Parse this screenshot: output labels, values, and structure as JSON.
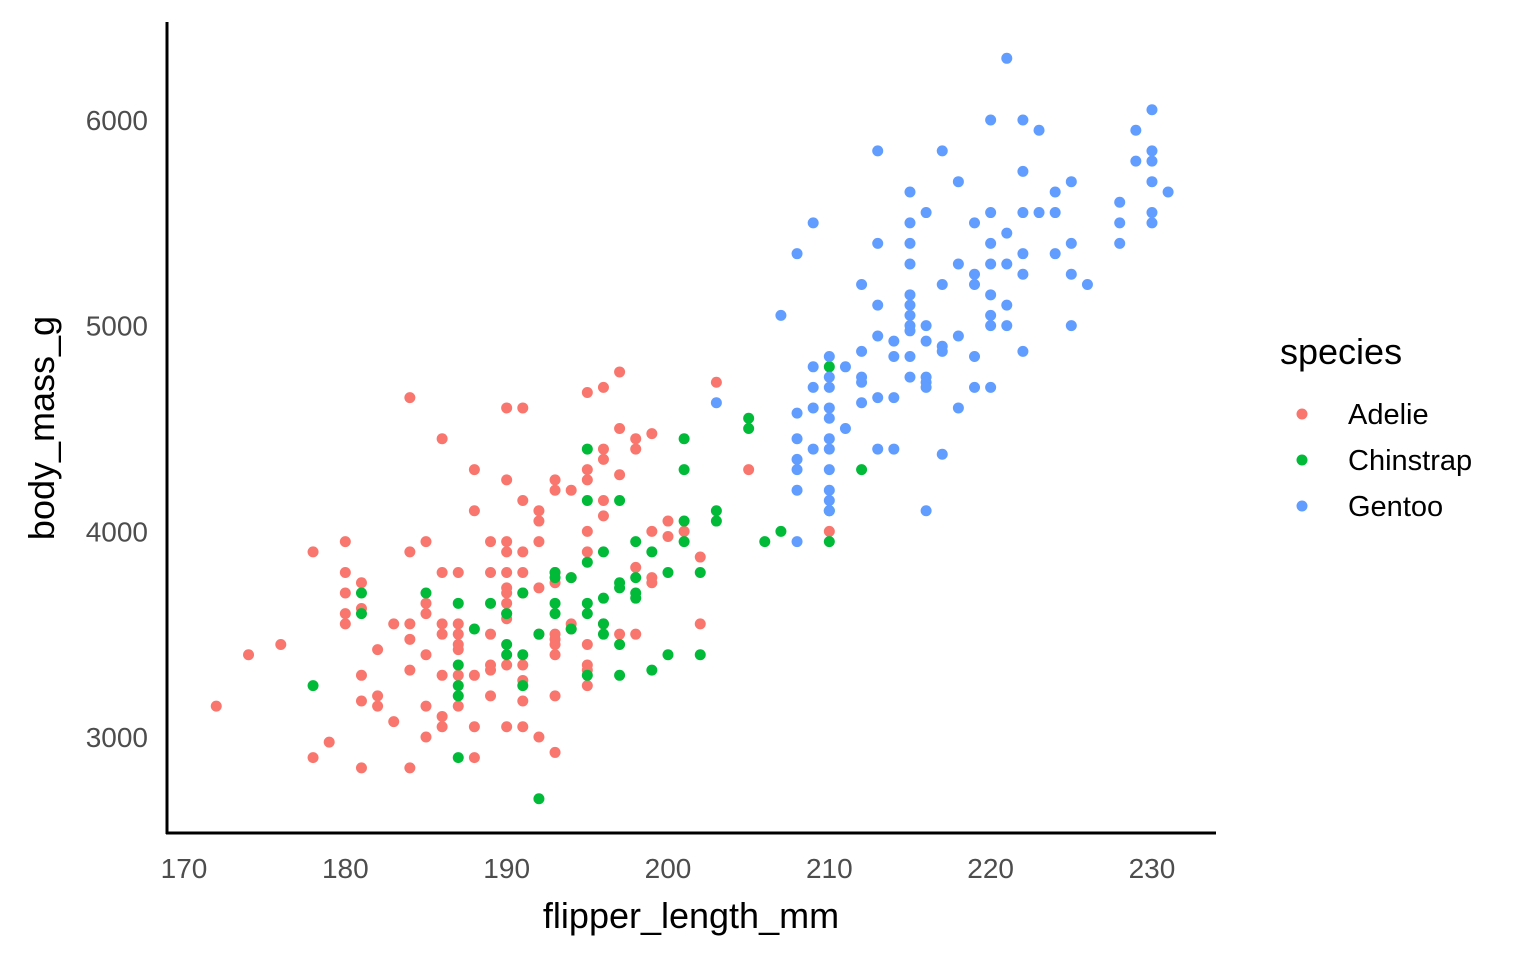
{
  "chart_data": {
    "type": "scatter",
    "xlabel": "flipper_length_mm",
    "ylabel": "body_mass_g",
    "xlim": [
      170,
      234
    ],
    "ylim": [
      2550,
      6450
    ],
    "xticks": [
      170,
      180,
      190,
      200,
      210,
      220,
      230
    ],
    "yticks": [
      3000,
      4000,
      5000,
      6000
    ],
    "grid": false,
    "legend": {
      "title": "species",
      "placement": "right"
    },
    "series": [
      {
        "name": "Adelie",
        "color": "#F8766D",
        "points": [
          [
            172,
            3150
          ],
          [
            174,
            3400
          ],
          [
            176,
            3450
          ],
          [
            178,
            3900
          ],
          [
            178,
            2900
          ],
          [
            179,
            2975
          ],
          [
            180,
            3950
          ],
          [
            180,
            3800
          ],
          [
            180,
            3700
          ],
          [
            180,
            3600
          ],
          [
            180,
            3550
          ],
          [
            181,
            3750
          ],
          [
            181,
            3625
          ],
          [
            181,
            3300
          ],
          [
            181,
            3175
          ],
          [
            181,
            2850
          ],
          [
            182,
            3425
          ],
          [
            182,
            3200
          ],
          [
            182,
            3150
          ],
          [
            183,
            3550
          ],
          [
            183,
            3075
          ],
          [
            184,
            4650
          ],
          [
            184,
            3900
          ],
          [
            184,
            3550
          ],
          [
            184,
            3475
          ],
          [
            184,
            3325
          ],
          [
            184,
            2850
          ],
          [
            185,
            3950
          ],
          [
            185,
            3650
          ],
          [
            185,
            3600
          ],
          [
            185,
            3400
          ],
          [
            185,
            3150
          ],
          [
            185,
            3000
          ],
          [
            186,
            4450
          ],
          [
            186,
            3800
          ],
          [
            186,
            3550
          ],
          [
            186,
            3500
          ],
          [
            186,
            3300
          ],
          [
            186,
            3100
          ],
          [
            186,
            3050
          ],
          [
            187,
            3800
          ],
          [
            187,
            3550
          ],
          [
            187,
            3500
          ],
          [
            187,
            3450
          ],
          [
            187,
            3425
          ],
          [
            187,
            3300
          ],
          [
            187,
            3150
          ],
          [
            188,
            4300
          ],
          [
            188,
            4100
          ],
          [
            188,
            3300
          ],
          [
            188,
            3050
          ],
          [
            188,
            2900
          ],
          [
            189,
            3950
          ],
          [
            189,
            3800
          ],
          [
            189,
            3500
          ],
          [
            189,
            3350
          ],
          [
            189,
            3325
          ],
          [
            189,
            3200
          ],
          [
            190,
            4600
          ],
          [
            190,
            4250
          ],
          [
            190,
            3950
          ],
          [
            190,
            3900
          ],
          [
            190,
            3800
          ],
          [
            190,
            3725
          ],
          [
            190,
            3700
          ],
          [
            190,
            3650
          ],
          [
            190,
            3600
          ],
          [
            190,
            3575
          ],
          [
            190,
            3350
          ],
          [
            190,
            3050
          ],
          [
            191,
            4600
          ],
          [
            191,
            4150
          ],
          [
            191,
            3900
          ],
          [
            191,
            3800
          ],
          [
            191,
            3700
          ],
          [
            191,
            3350
          ],
          [
            191,
            3275
          ],
          [
            191,
            3175
          ],
          [
            191,
            3050
          ],
          [
            192,
            4100
          ],
          [
            192,
            4050
          ],
          [
            192,
            3950
          ],
          [
            192,
            3725
          ],
          [
            192,
            3500
          ],
          [
            192,
            3000
          ],
          [
            193,
            4250
          ],
          [
            193,
            4200
          ],
          [
            193,
            3800
          ],
          [
            193,
            3750
          ],
          [
            193,
            3500
          ],
          [
            193,
            3475
          ],
          [
            193,
            3450
          ],
          [
            193,
            3400
          ],
          [
            193,
            3200
          ],
          [
            193,
            2925
          ],
          [
            194,
            4200
          ],
          [
            194,
            3775
          ],
          [
            194,
            3550
          ],
          [
            194,
            3525
          ],
          [
            195,
            4675
          ],
          [
            195,
            4300
          ],
          [
            195,
            4250
          ],
          [
            195,
            4000
          ],
          [
            195,
            3900
          ],
          [
            195,
            3450
          ],
          [
            195,
            3350
          ],
          [
            195,
            3325
          ],
          [
            195,
            3250
          ],
          [
            196,
            4700
          ],
          [
            196,
            4400
          ],
          [
            196,
            4350
          ],
          [
            196,
            4150
          ],
          [
            196,
            4075
          ],
          [
            196,
            3550
          ],
          [
            197,
            4775
          ],
          [
            197,
            4500
          ],
          [
            197,
            4275
          ],
          [
            197,
            3500
          ],
          [
            198,
            4450
          ],
          [
            198,
            4400
          ],
          [
            198,
            3825
          ],
          [
            198,
            3500
          ],
          [
            199,
            4475
          ],
          [
            199,
            4000
          ],
          [
            199,
            3775
          ],
          [
            199,
            3750
          ],
          [
            200,
            4050
          ],
          [
            200,
            3975
          ],
          [
            201,
            4000
          ],
          [
            202,
            3875
          ],
          [
            202,
            3550
          ],
          [
            203,
            4725
          ],
          [
            205,
            4300
          ],
          [
            210,
            4000
          ]
        ]
      },
      {
        "name": "Chinstrap",
        "color": "#00BA38",
        "points": [
          [
            178,
            3250
          ],
          [
            181,
            3700
          ],
          [
            181,
            3600
          ],
          [
            185,
            3700
          ],
          [
            187,
            3650
          ],
          [
            187,
            3350
          ],
          [
            187,
            3250
          ],
          [
            187,
            3200
          ],
          [
            187,
            2900
          ],
          [
            188,
            3525
          ],
          [
            189,
            3650
          ],
          [
            190,
            3600
          ],
          [
            190,
            3450
          ],
          [
            190,
            3400
          ],
          [
            191,
            3700
          ],
          [
            191,
            3400
          ],
          [
            191,
            3250
          ],
          [
            192,
            3500
          ],
          [
            192,
            2700
          ],
          [
            193,
            3800
          ],
          [
            193,
            3775
          ],
          [
            193,
            3650
          ],
          [
            193,
            3600
          ],
          [
            194,
            3775
          ],
          [
            194,
            3525
          ],
          [
            195,
            4400
          ],
          [
            195,
            4150
          ],
          [
            195,
            3850
          ],
          [
            195,
            3650
          ],
          [
            195,
            3600
          ],
          [
            195,
            3300
          ],
          [
            196,
            3900
          ],
          [
            196,
            3675
          ],
          [
            196,
            3550
          ],
          [
            196,
            3500
          ],
          [
            197,
            4150
          ],
          [
            197,
            3750
          ],
          [
            197,
            3725
          ],
          [
            197,
            3450
          ],
          [
            197,
            3300
          ],
          [
            198,
            3950
          ],
          [
            198,
            3775
          ],
          [
            198,
            3700
          ],
          [
            198,
            3675
          ],
          [
            199,
            3900
          ],
          [
            199,
            3325
          ],
          [
            200,
            3800
          ],
          [
            200,
            3400
          ],
          [
            201,
            4450
          ],
          [
            201,
            4300
          ],
          [
            201,
            4050
          ],
          [
            201,
            3950
          ],
          [
            202,
            3800
          ],
          [
            202,
            3400
          ],
          [
            203,
            4100
          ],
          [
            203,
            4050
          ],
          [
            205,
            4550
          ],
          [
            205,
            4500
          ],
          [
            206,
            3950
          ],
          [
            207,
            4000
          ],
          [
            210,
            4800
          ],
          [
            210,
            4100
          ],
          [
            210,
            3950
          ],
          [
            212,
            4300
          ]
        ]
      },
      {
        "name": "Gentoo",
        "color": "#619CFF",
        "points": [
          [
            221,
            6300
          ],
          [
            230,
            6050
          ],
          [
            220,
            6000
          ],
          [
            222,
            6000
          ],
          [
            223,
            5950
          ],
          [
            229,
            5950
          ],
          [
            213,
            5850
          ],
          [
            217,
            5850
          ],
          [
            230,
            5850
          ],
          [
            229,
            5800
          ],
          [
            230,
            5800
          ],
          [
            222,
            5750
          ],
          [
            218,
            5700
          ],
          [
            225,
            5700
          ],
          [
            230,
            5700
          ],
          [
            215,
            5650
          ],
          [
            224,
            5650
          ],
          [
            231,
            5650
          ],
          [
            228,
            5600
          ],
          [
            209,
            5500
          ],
          [
            215,
            5500
          ],
          [
            219,
            5500
          ],
          [
            228,
            5500
          ],
          [
            230,
            5500
          ],
          [
            216,
            5550
          ],
          [
            220,
            5550
          ],
          [
            222,
            5550
          ],
          [
            223,
            5550
          ],
          [
            224,
            5550
          ],
          [
            230,
            5550
          ],
          [
            221,
            5450
          ],
          [
            208,
            5350
          ],
          [
            213,
            5400
          ],
          [
            215,
            5400
          ],
          [
            220,
            5400
          ],
          [
            225,
            5400
          ],
          [
            228,
            5400
          ],
          [
            224,
            5350
          ],
          [
            222,
            5350
          ],
          [
            215,
            5300
          ],
          [
            218,
            5300
          ],
          [
            220,
            5300
          ],
          [
            221,
            5300
          ],
          [
            219,
            5250
          ],
          [
            222,
            5250
          ],
          [
            225,
            5250
          ],
          [
            212,
            5200
          ],
          [
            217,
            5200
          ],
          [
            219,
            5200
          ],
          [
            226,
            5200
          ],
          [
            215,
            5150
          ],
          [
            220,
            5150
          ],
          [
            213,
            5100
          ],
          [
            215,
            5100
          ],
          [
            221,
            5100
          ],
          [
            207,
            5050
          ],
          [
            215,
            5050
          ],
          [
            220,
            5050
          ],
          [
            215,
            5000
          ],
          [
            216,
            5000
          ],
          [
            220,
            5000
          ],
          [
            221,
            5000
          ],
          [
            225,
            5000
          ],
          [
            215,
            4975
          ],
          [
            213,
            4950
          ],
          [
            218,
            4950
          ],
          [
            214,
            4925
          ],
          [
            216,
            4925
          ],
          [
            217,
            4900
          ],
          [
            217,
            4875
          ],
          [
            222,
            4875
          ],
          [
            210,
            4850
          ],
          [
            212,
            4875
          ],
          [
            214,
            4850
          ],
          [
            215,
            4850
          ],
          [
            219,
            4850
          ],
          [
            209,
            4800
          ],
          [
            211,
            4800
          ],
          [
            210,
            4750
          ],
          [
            212,
            4750
          ],
          [
            215,
            4750
          ],
          [
            216,
            4750
          ],
          [
            212,
            4725
          ],
          [
            216,
            4725
          ],
          [
            209,
            4700
          ],
          [
            210,
            4700
          ],
          [
            216,
            4700
          ],
          [
            219,
            4700
          ],
          [
            220,
            4700
          ],
          [
            213,
            4650
          ],
          [
            214,
            4650
          ],
          [
            203,
            4625
          ],
          [
            212,
            4625
          ],
          [
            208,
            4575
          ],
          [
            209,
            4600
          ],
          [
            210,
            4600
          ],
          [
            218,
            4600
          ],
          [
            210,
            4550
          ],
          [
            211,
            4500
          ],
          [
            208,
            4450
          ],
          [
            210,
            4450
          ],
          [
            210,
            4400
          ],
          [
            213,
            4400
          ],
          [
            214,
            4400
          ],
          [
            209,
            4400
          ],
          [
            208,
            4350
          ],
          [
            217,
            4375
          ],
          [
            208,
            4300
          ],
          [
            210,
            4300
          ],
          [
            208,
            4200
          ],
          [
            210,
            4200
          ],
          [
            210,
            4150
          ],
          [
            210,
            4100
          ],
          [
            216,
            4100
          ],
          [
            208,
            3950
          ]
        ]
      }
    ]
  }
}
